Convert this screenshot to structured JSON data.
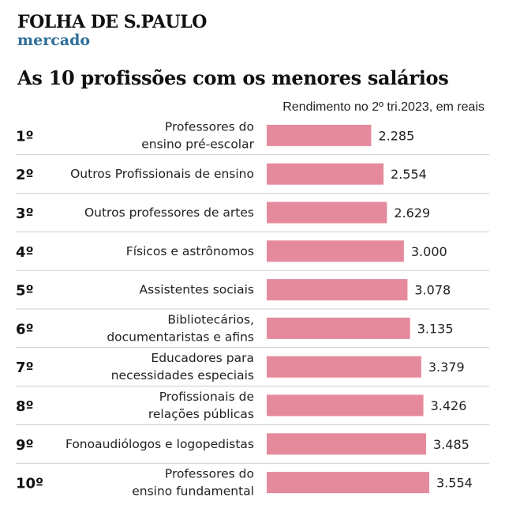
{
  "header": {
    "brand": "FOLHA DE S.PAULO",
    "section": "mercado",
    "title": "As 10 profissões com os menores salários",
    "subtitle": "Rendimento no 2º tri.2023, em reais"
  },
  "colors": {
    "bar": "#e58a9c",
    "divider": "#cccccc",
    "section": "#2f6f9a"
  },
  "chart_data": {
    "type": "bar",
    "orientation": "horizontal",
    "title": "As 10 profissões com os menores salários",
    "subtitle": "Rendimento no 2º tri.2023, em reais",
    "ranks": [
      "1º",
      "2º",
      "3º",
      "4º",
      "5º",
      "6º",
      "7º",
      "8º",
      "9º",
      "10º"
    ],
    "categories": [
      [
        "Professores do",
        "ensino pré-escolar"
      ],
      [
        "Outros Profissionais de ensino"
      ],
      [
        "Outros professores de artes"
      ],
      [
        "Físicos e astrônomos"
      ],
      [
        "Assistentes sociais"
      ],
      [
        "Bibliotecários,",
        "documentaristas e afins"
      ],
      [
        "Educadores para",
        "necessidades especiais"
      ],
      [
        "Profissionais de",
        "relações públicas"
      ],
      [
        "Fonoaudiólogos e logopedistas"
      ],
      [
        "Professores do",
        "ensino fundamental"
      ]
    ],
    "values": [
      2285,
      2554,
      2629,
      3000,
      3078,
      3135,
      3379,
      3426,
      3485,
      3554
    ],
    "value_labels": [
      "2.285",
      "2.554",
      "2.629",
      "3.000",
      "3.078",
      "3.135",
      "3.379",
      "3.426",
      "3.485",
      "3.554"
    ],
    "xlim": [
      0,
      3554
    ],
    "grid": false,
    "legend": "none"
  }
}
